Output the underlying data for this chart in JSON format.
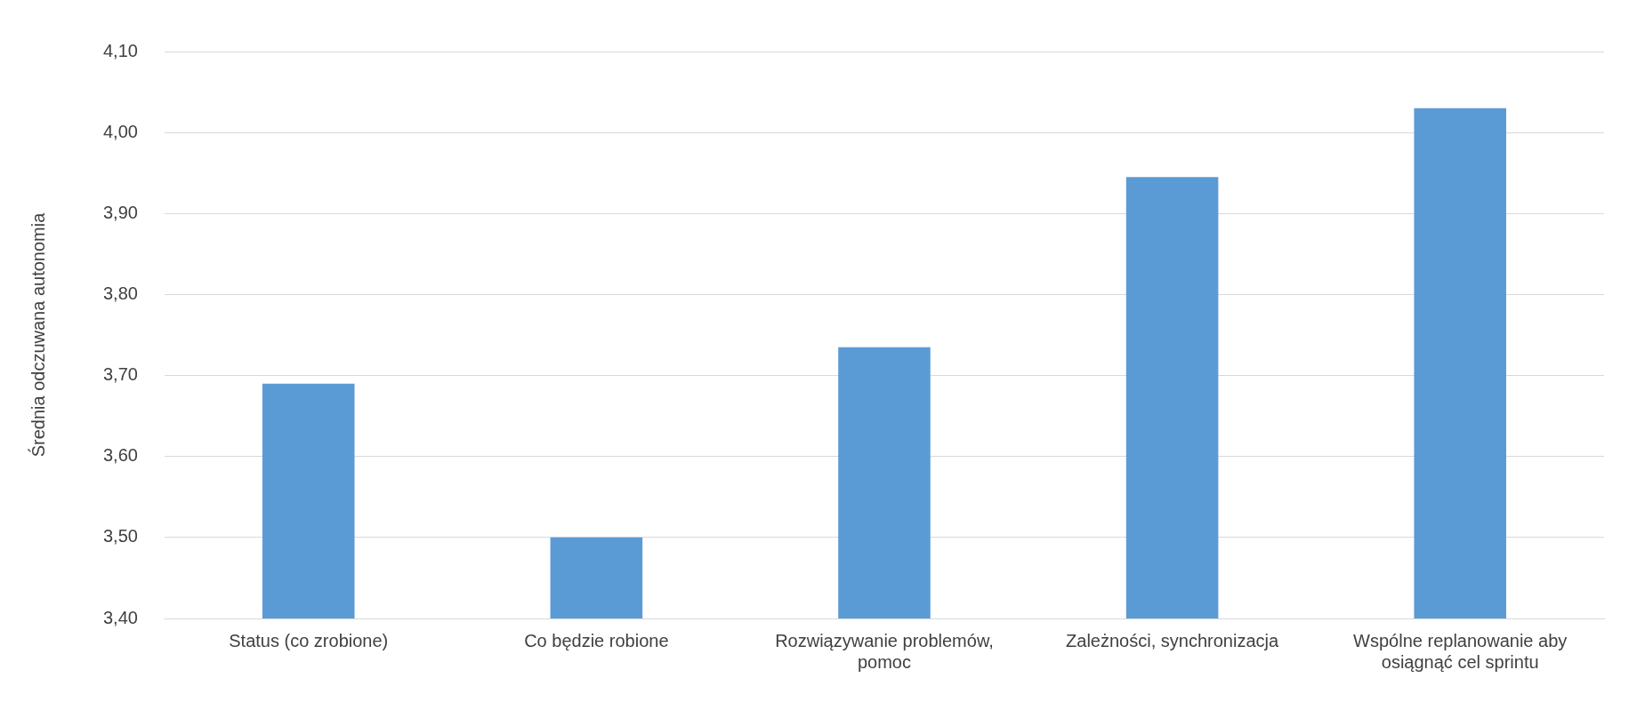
{
  "chart_data": {
    "type": "bar",
    "ylabel": "Średnia odczuwana autonomia",
    "categories": [
      "Status (co zrobione)",
      "Co będzie robione",
      "Rozwiązywanie problemów, pomoc",
      "Zależności, synchronizacja",
      "Wspólne replanowanie aby osiągnąć cel sprintu"
    ],
    "values": [
      3.69,
      3.5,
      3.735,
      3.945,
      4.03
    ],
    "color": "#5b9bd5",
    "ylim": [
      3.4,
      4.1
    ],
    "yticks": [
      {
        "value": 3.4,
        "label": "3,40"
      },
      {
        "value": 3.5,
        "label": "3,50"
      },
      {
        "value": 3.6,
        "label": "3,60"
      },
      {
        "value": 3.7,
        "label": "3,70"
      },
      {
        "value": 3.8,
        "label": "3,80"
      },
      {
        "value": 3.9,
        "label": "3,90"
      },
      {
        "value": 4.0,
        "label": "4,00"
      },
      {
        "value": 4.1,
        "label": "4,10"
      }
    ],
    "grid": "y",
    "legend": false
  }
}
